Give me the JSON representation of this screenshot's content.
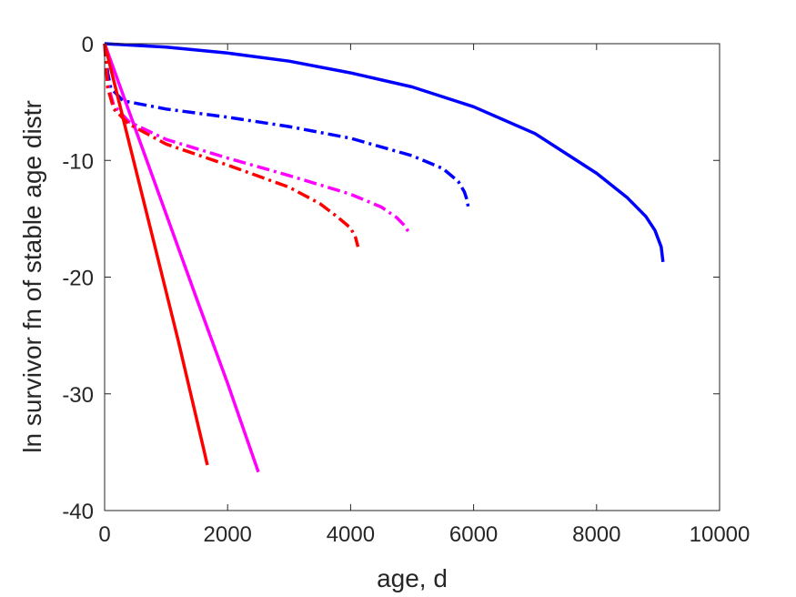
{
  "chart_data": {
    "type": "line",
    "title": "",
    "xlabel": "age, d",
    "ylabel": "ln survivor fn of stable age distr",
    "xlim": [
      0,
      10000
    ],
    "ylim": [
      -40,
      0
    ],
    "xticks": [
      0,
      2000,
      4000,
      6000,
      8000,
      10000
    ],
    "yticks": [
      0,
      -10,
      -20,
      -30,
      -40
    ],
    "xtick_labels": [
      "0",
      "2000",
      "4000",
      "6000",
      "8000",
      "10000"
    ],
    "ytick_labels": [
      "0",
      "-10",
      "-20",
      "-30",
      "-40"
    ],
    "grid": false,
    "series": [
      {
        "color": "#0000ff",
        "style": "solid",
        "x": [
          0,
          1000,
          2000,
          3000,
          4000,
          5000,
          6000,
          7000,
          8000,
          8500,
          8800,
          8950,
          9050,
          9080
        ],
        "y": [
          0,
          -0.3,
          -0.8,
          -1.5,
          -2.5,
          -3.7,
          -5.4,
          -7.7,
          -11.1,
          -13.2,
          -14.8,
          -16.0,
          -17.4,
          -18.7
        ]
      },
      {
        "color": "#0000ff",
        "style": "dashdot",
        "x": [
          0,
          50,
          100,
          300,
          1000,
          2000,
          3000,
          4000,
          5000,
          5500,
          5750,
          5850,
          5900,
          5920
        ],
        "y": [
          0,
          -2.5,
          -3.8,
          -4.9,
          -5.6,
          -6.3,
          -7.1,
          -8.1,
          -9.6,
          -10.7,
          -11.8,
          -12.7,
          -13.5,
          -14.3
        ]
      },
      {
        "color": "#ff00ff",
        "style": "solid",
        "x": [
          0,
          500,
          1000,
          1500,
          2000,
          2500
        ],
        "y": [
          0,
          -7.3,
          -14.6,
          -21.9,
          -29.1,
          -36.7
        ]
      },
      {
        "color": "#ff00ff",
        "style": "dashdot",
        "x": [
          0,
          50,
          150,
          400,
          1000,
          2000,
          3000,
          4000,
          4500,
          4750,
          4880,
          4940
        ],
        "y": [
          0,
          -3.5,
          -5.3,
          -6.7,
          -8.2,
          -9.8,
          -11.3,
          -12.9,
          -14.0,
          -14.9,
          -15.6,
          -16.1
        ]
      },
      {
        "color": "#ff0000",
        "style": "solid",
        "x": [
          0,
          400,
          800,
          1200,
          1600,
          1670
        ],
        "y": [
          0,
          -8.5,
          -17.0,
          -25.5,
          -34.5,
          -36.1
        ]
      },
      {
        "color": "#ff0000",
        "style": "dashdot",
        "x": [
          0,
          50,
          150,
          400,
          1000,
          2000,
          3000,
          3500,
          3800,
          4000,
          4080,
          4120
        ],
        "y": [
          0,
          -3.8,
          -5.6,
          -6.9,
          -8.6,
          -10.4,
          -12.3,
          -13.7,
          -14.9,
          -15.8,
          -16.6,
          -17.4
        ]
      }
    ]
  }
}
